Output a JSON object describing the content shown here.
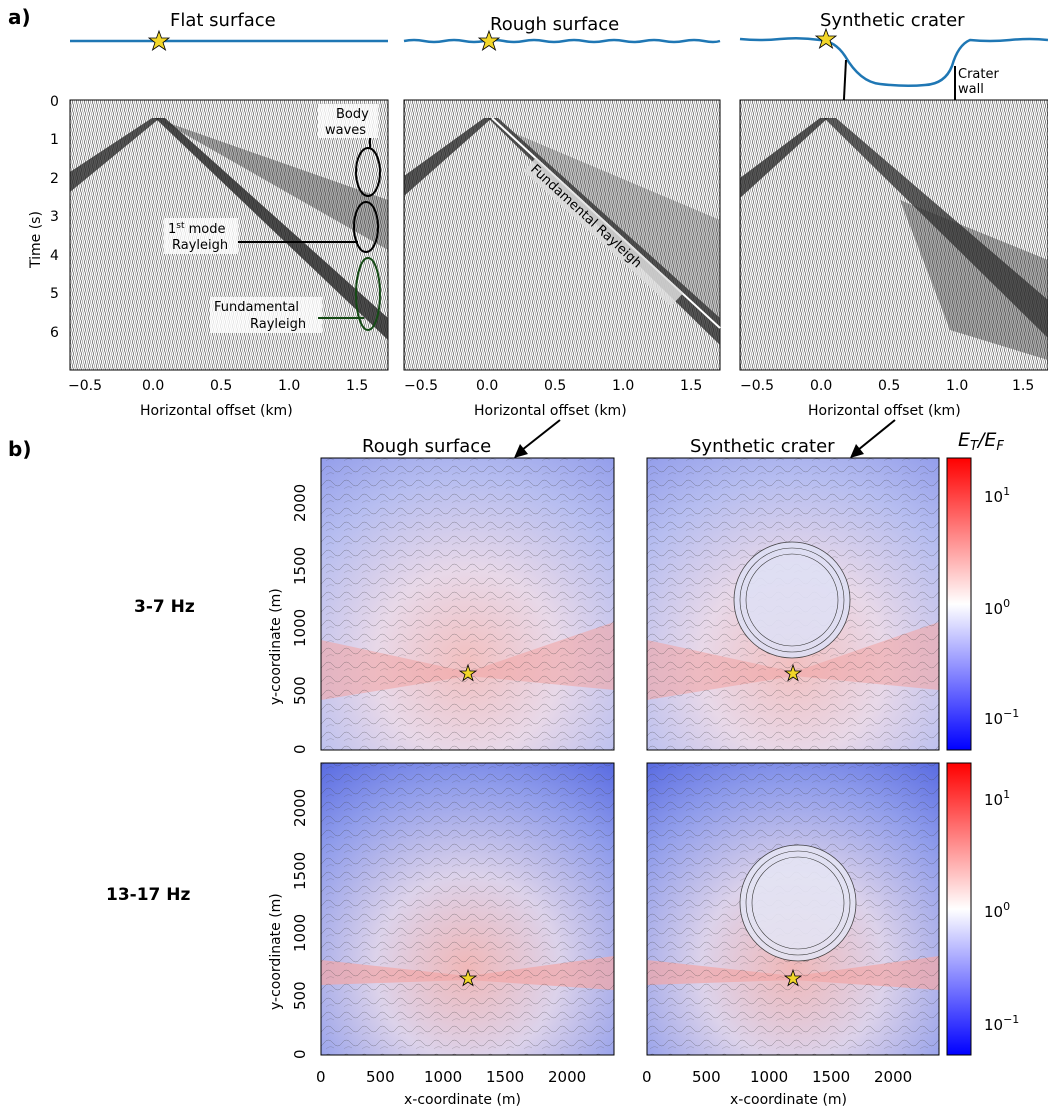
{
  "panel_labels": {
    "a": "a)",
    "b": "b)"
  },
  "panel_a": {
    "titles": [
      "Flat surface",
      "Rough surface",
      "Synthetic crater"
    ],
    "ylabel": "Time (s)",
    "xlabel": "Horizontal offset (km)",
    "yticks": [
      "0",
      "1",
      "2",
      "3",
      "4",
      "5",
      "6"
    ],
    "xticks": [
      "−0.5",
      "0.0",
      "0.5",
      "1.0",
      "1.5"
    ],
    "annotations": {
      "body_waves": [
        "Body",
        "waves"
      ],
      "first_mode": {
        "base": "1",
        "sup": "st",
        "rest": " mode",
        "line2": "Rayleigh"
      },
      "fundamental": [
        "Fundamental",
        "Rayleigh"
      ],
      "fundamental_diag": "Fundamental Rayleigh",
      "crater_wall": [
        "Crater",
        "wall"
      ]
    },
    "colors": {
      "surface": "#1f77b4",
      "star": "#f2d629"
    }
  },
  "panel_b": {
    "col_titles": [
      "Rough surface",
      "Synthetic crater"
    ],
    "row_labels": [
      "3-7 Hz",
      "13-17 Hz"
    ],
    "ylabel": "y-coordinate (m)",
    "xlabel": "x-coordinate (m)",
    "yticks": [
      "0",
      "500",
      "1000",
      "1500",
      "2000"
    ],
    "xticks": [
      "0",
      "500",
      "1000",
      "1500",
      "2000"
    ],
    "colorbar": {
      "label": "E_T/E_F",
      "ticks": [
        {
          "base": "10",
          "exp": "1"
        },
        {
          "base": "10",
          "exp": "0"
        },
        {
          "base": "10",
          "exp": "−1"
        }
      ]
    },
    "colors": {
      "low": "#0000ff",
      "mid": "#ffffff",
      "high": "#ff0000"
    }
  }
}
